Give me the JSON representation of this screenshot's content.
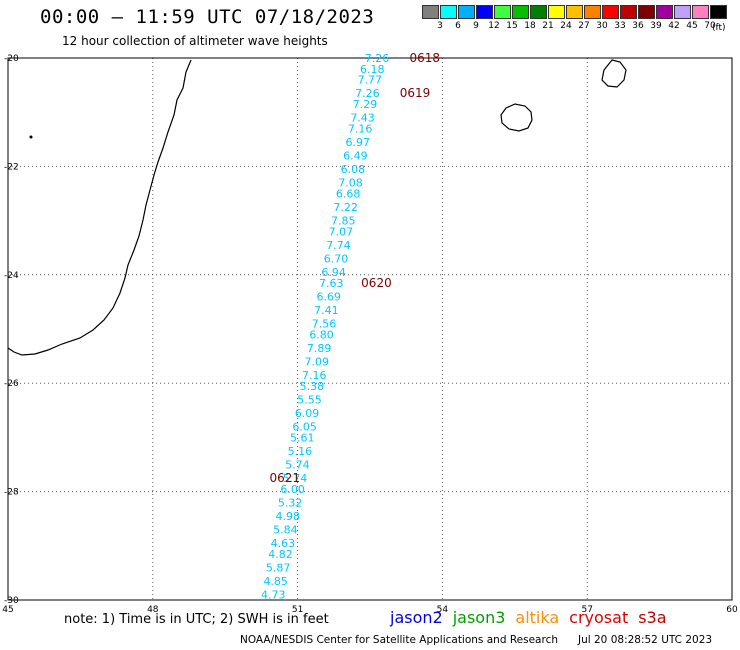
{
  "header": {
    "title": "00:00 – 11:59 UTC 07/18/2023",
    "subtitle": "12 hour collection of altimeter wave heights"
  },
  "legend": {
    "colors": [
      "#808080",
      "#00ffff",
      "#00b0ff",
      "#0000ff",
      "#40ff40",
      "#00c000",
      "#008000",
      "#ffff00",
      "#ffc000",
      "#ff8000",
      "#ff0000",
      "#c00000",
      "#800000",
      "#a000a0",
      "#c0a0ff",
      "#ff80c0",
      "#000000"
    ],
    "labels": [
      "3",
      "6",
      "9",
      "12",
      "15",
      "18",
      "21",
      "24",
      "27",
      "30",
      "33",
      "36",
      "39",
      "42",
      "45",
      "70"
    ],
    "unit": "(ft)"
  },
  "map": {
    "lon_ticks": [
      "45",
      "48",
      "51",
      "54",
      "57",
      "60"
    ],
    "lat_ticks": [
      "-20",
      "-22",
      "-24",
      "-26",
      "-28",
      "-30"
    ],
    "colors": {
      "track": "#00c8ff",
      "date": "#800000"
    },
    "track": [
      {
        "lon": 52.9,
        "lat": -20.0,
        "value": "7.26"
      },
      {
        "lon": 52.8,
        "lat": -20.2,
        "value": "6.18"
      },
      {
        "lon": 52.75,
        "lat": -20.4,
        "value": "7.77"
      },
      {
        "lon": 52.7,
        "lat": -20.65,
        "value": "7.26"
      },
      {
        "lon": 52.65,
        "lat": -20.85,
        "value": "7.29"
      },
      {
        "lon": 52.6,
        "lat": -21.1,
        "value": "7.43"
      },
      {
        "lon": 52.55,
        "lat": -21.3,
        "value": "7.16"
      },
      {
        "lon": 52.5,
        "lat": -21.55,
        "value": "6.97"
      },
      {
        "lon": 52.45,
        "lat": -21.8,
        "value": "6.49"
      },
      {
        "lon": 52.4,
        "lat": -22.05,
        "value": "6.08"
      },
      {
        "lon": 52.35,
        "lat": -22.3,
        "value": "7.08"
      },
      {
        "lon": 52.3,
        "lat": -22.5,
        "value": "6.68"
      },
      {
        "lon": 52.25,
        "lat": -22.75,
        "value": "7.22"
      },
      {
        "lon": 52.2,
        "lat": -23.0,
        "value": "7.85"
      },
      {
        "lon": 52.15,
        "lat": -23.2,
        "value": "7.07"
      },
      {
        "lon": 52.1,
        "lat": -23.45,
        "value": "7.74"
      },
      {
        "lon": 52.05,
        "lat": -23.7,
        "value": "6.70"
      },
      {
        "lon": 52.0,
        "lat": -23.95,
        "value": "6.94"
      },
      {
        "lon": 51.95,
        "lat": -24.15,
        "value": "7.63"
      },
      {
        "lon": 51.9,
        "lat": -24.4,
        "value": "6.69"
      },
      {
        "lon": 51.85,
        "lat": -24.65,
        "value": "7.41"
      },
      {
        "lon": 51.8,
        "lat": -24.9,
        "value": "7.56"
      },
      {
        "lon": 51.75,
        "lat": -25.1,
        "value": "6.80"
      },
      {
        "lon": 51.7,
        "lat": -25.35,
        "value": "7.89"
      },
      {
        "lon": 51.65,
        "lat": -25.6,
        "value": "7.09"
      },
      {
        "lon": 51.6,
        "lat": -25.85,
        "value": "7.16"
      },
      {
        "lon": 51.55,
        "lat": -26.05,
        "value": "5.38"
      },
      {
        "lon": 51.5,
        "lat": -26.3,
        "value": "5.55"
      },
      {
        "lon": 51.45,
        "lat": -26.55,
        "value": "6.09"
      },
      {
        "lon": 51.4,
        "lat": -26.8,
        "value": "6.05"
      },
      {
        "lon": 51.35,
        "lat": -27.0,
        "value": "5.61"
      },
      {
        "lon": 51.3,
        "lat": -27.25,
        "value": "5.16"
      },
      {
        "lon": 51.25,
        "lat": -27.5,
        "value": "5.74"
      },
      {
        "lon": 51.2,
        "lat": -27.75,
        "value": "5.74"
      },
      {
        "lon": 51.15,
        "lat": -27.95,
        "value": "6.00"
      },
      {
        "lon": 51.1,
        "lat": -28.2,
        "value": "5.32"
      },
      {
        "lon": 51.05,
        "lat": -28.45,
        "value": "4.98"
      },
      {
        "lon": 51.0,
        "lat": -28.7,
        "value": "5.84"
      },
      {
        "lon": 50.95,
        "lat": -28.95,
        "value": "4.63"
      },
      {
        "lon": 50.9,
        "lat": -29.15,
        "value": "4.82"
      },
      {
        "lon": 50.85,
        "lat": -29.4,
        "value": "5.87"
      },
      {
        "lon": 50.8,
        "lat": -29.65,
        "value": "4.85"
      },
      {
        "lon": 50.75,
        "lat": -29.9,
        "value": "4.73"
      }
    ],
    "date_labels": [
      {
        "lon": 53.95,
        "lat": -20.0,
        "text": "0618"
      },
      {
        "lon": 53.75,
        "lat": -20.65,
        "text": "0619"
      },
      {
        "lon": 52.95,
        "lat": -24.15,
        "text": "0620"
      },
      {
        "lon": 51.05,
        "lat": -27.75,
        "text": "0621"
      }
    ]
  },
  "footer": {
    "note": "note: 1) Time is in UTC; 2) SWH is in feet",
    "satellites": [
      {
        "name": "jason2",
        "color": "#0000e0"
      },
      {
        "name": "jason3",
        "color": "#00a000"
      },
      {
        "name": "altika",
        "color": "#ff9000"
      },
      {
        "name": "cryosat",
        "color": "#e00000"
      },
      {
        "name": "s3a",
        "color": "#c00000"
      }
    ],
    "credit": "NOAA/NESDIS Center for Satellite Applications and Research",
    "timestamp": "Jul 20 08:28:52 UTC 2023"
  }
}
